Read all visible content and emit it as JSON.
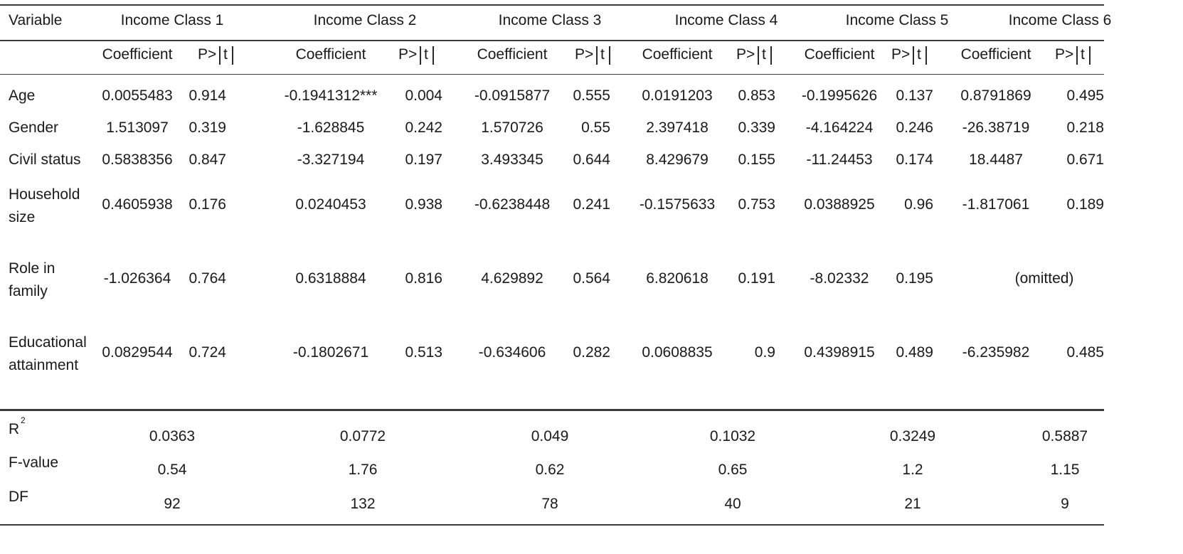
{
  "header": {
    "variable": "Variable",
    "classes": [
      "Income Class 1",
      "Income Class 2",
      "Income Class 3",
      "Income Class 4",
      "Income Class 5",
      "Income Class 6"
    ],
    "coef_label": "Coefficient",
    "p_prefix": "P>",
    "p_t": "t"
  },
  "rows": [
    {
      "label": "Age",
      "cells": [
        {
          "coef": "0.0055483",
          "p": "0.914"
        },
        {
          "coef": "-0.1941312***",
          "p": "0.004"
        },
        {
          "coef": "-0.0915877",
          "p": "0.555"
        },
        {
          "coef": "0.0191203",
          "p": "0.853"
        },
        {
          "coef": "-0.1995626",
          "p": "0.137"
        },
        {
          "coef": "0.8791869",
          "p": "0.495"
        }
      ]
    },
    {
      "label": "Gender",
      "cells": [
        {
          "coef": "1.513097",
          "p": "0.319"
        },
        {
          "coef": "-1.628845",
          "p": "0.242"
        },
        {
          "coef": "1.570726",
          "p": "0.55"
        },
        {
          "coef": "2.397418",
          "p": "0.339"
        },
        {
          "coef": "-4.164224",
          "p": "0.246"
        },
        {
          "coef": "-26.38719",
          "p": "0.218"
        }
      ]
    },
    {
      "label": "Civil status",
      "cells": [
        {
          "coef": "0.5838356",
          "p": "0.847"
        },
        {
          "coef": "-3.327194",
          "p": "0.197"
        },
        {
          "coef": "3.493345",
          "p": "0.644"
        },
        {
          "coef": "8.429679",
          "p": "0.155"
        },
        {
          "coef": "-11.24453",
          "p": "0.174"
        },
        {
          "coef": "18.4487",
          "p": "0.671"
        }
      ]
    },
    {
      "label1": "Household",
      "label2": "size",
      "cells": [
        {
          "coef": "0.4605938",
          "p": "0.176"
        },
        {
          "coef": "0.0240453",
          "p": "0.938"
        },
        {
          "coef": "-0.6238448",
          "p": "0.241"
        },
        {
          "coef": "-0.1575633",
          "p": "0.753"
        },
        {
          "coef": "0.0388925",
          "p": "0.96"
        },
        {
          "coef": "-1.817061",
          "p": "0.189"
        }
      ]
    },
    {
      "label1": "Role in",
      "label2": "family",
      "cells": [
        {
          "coef": "-1.026364",
          "p": "0.764"
        },
        {
          "coef": "0.6318884",
          "p": "0.816"
        },
        {
          "coef": "4.629892",
          "p": "0.564"
        },
        {
          "coef": "6.820618",
          "p": "0.191"
        },
        {
          "coef": "-8.02332",
          "p": "0.195"
        }
      ],
      "omitted": "(omitted)"
    },
    {
      "label1": "Educational",
      "label2": "attainment",
      "cells": [
        {
          "coef": "0.0829544",
          "p": "0.724"
        },
        {
          "coef": "-0.1802671",
          "p": "0.513"
        },
        {
          "coef": "-0.634606",
          "p": "0.282"
        },
        {
          "coef": "0.0608835",
          "p": "0.9"
        },
        {
          "coef": "0.4398915",
          "p": "0.489"
        },
        {
          "coef": "-6.235982",
          "p": "0.485"
        }
      ]
    }
  ],
  "stats": [
    {
      "label": "R",
      "sup": "2",
      "values": [
        "0.0363",
        "0.0772",
        "0.049",
        "0.1032",
        "0.3249",
        "0.5887"
      ]
    },
    {
      "label": "F-value",
      "values": [
        "0.54",
        "1.76",
        "0.62",
        "0.65",
        "1.2",
        "1.15"
      ]
    },
    {
      "label": "DF",
      "values": [
        "92",
        "132",
        "78",
        "40",
        "21",
        "9"
      ]
    }
  ]
}
